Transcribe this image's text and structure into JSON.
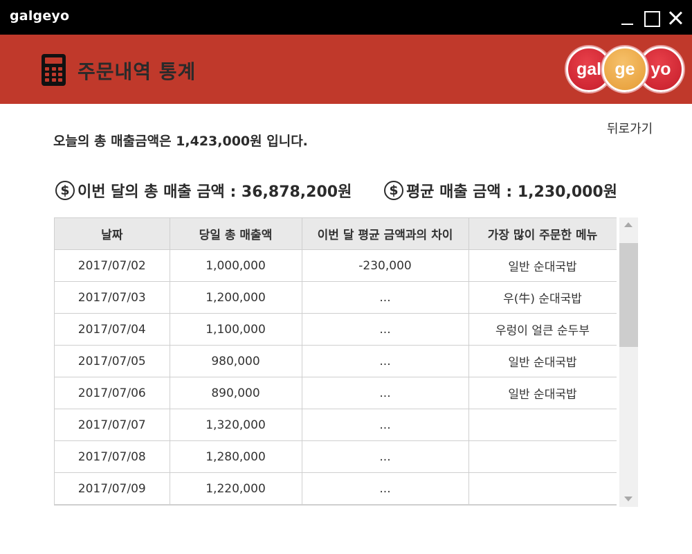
{
  "window": {
    "app_name": "galgeyo",
    "controls": [
      "minimize",
      "maximize",
      "close"
    ]
  },
  "header": {
    "title": "주문내역 통계",
    "icon": "calculator-icon",
    "logo": {
      "parts": [
        "gal",
        "ge",
        "yo"
      ]
    }
  },
  "colors": {
    "titlebar": "#000000",
    "header": "#c0392b",
    "logo_red": "#d42a35",
    "logo_orange": "#eeab4b",
    "table_header": "#e9e9e9"
  },
  "main": {
    "back_label": "뒤로가기",
    "today_summary": "오늘의 총 매출금액은 1,423,000원 입니다.",
    "month_total_label": "이번 달의 총 매출 금액 : 36,878,200원",
    "average_label": "평균 매출 금액 : 1,230,000원",
    "stat_icon": "dollar-circle-icon",
    "stat_icon_glyph": "$"
  },
  "table": {
    "columns": [
      "날짜",
      "당일 총 매출액",
      "이번 달 평균 금액과의 차이",
      "가장 많이 주문한 메뉴"
    ],
    "rows": [
      [
        "2017/07/02",
        "1,000,000",
        "-230,000",
        "일반 순대국밥"
      ],
      [
        "2017/07/03",
        "1,200,000",
        "...",
        "우(牛) 순대국밥"
      ],
      [
        "2017/07/04",
        "1,100,000",
        "...",
        "우렁이 얼큰 순두부"
      ],
      [
        "2017/07/05",
        "980,000",
        "...",
        "일반 순대국밥"
      ],
      [
        "2017/07/06",
        "890,000",
        "...",
        "일반 순대국밥"
      ],
      [
        "2017/07/07",
        "1,320,000",
        "...",
        ""
      ],
      [
        "2017/07/08",
        "1,280,000",
        "...",
        ""
      ],
      [
        "2017/07/09",
        "1,220,000",
        "...",
        ""
      ]
    ]
  }
}
